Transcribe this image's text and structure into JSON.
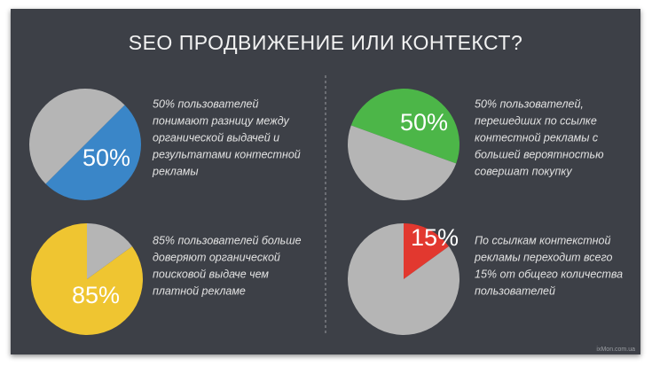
{
  "title": "SEO ПРОДВИЖЕНИЕ ИЛИ КОНТЕКСТ?",
  "source": "ixMon.com.ua",
  "chart_data": [
    {
      "type": "pie",
      "values": [
        50,
        50
      ],
      "colors": [
        "#3a86c8",
        "#b5b5b5"
      ],
      "value_labels": [
        "50%",
        null
      ],
      "description": [
        "50% пользователей",
        "понимают разницу между",
        "органической выдачей и",
        "результатами контестной",
        "рекламы"
      ]
    },
    {
      "type": "pie",
      "values": [
        50,
        50
      ],
      "colors": [
        "#4cb648",
        "#b5b5b5"
      ],
      "value_labels": [
        "50%",
        null
      ],
      "description": [
        "50% пользователей,",
        "перешедших по ссылке",
        "контестной рекламы с",
        "большей вероятностью",
        "совершат покупку"
      ]
    },
    {
      "type": "pie",
      "values": [
        85,
        15
      ],
      "colors": [
        "#efc531",
        "#b5b5b5"
      ],
      "value_labels": [
        "85%",
        null
      ],
      "description": [
        "85% пользователей больше",
        "доверяют органической",
        "поисковой выдаче чем",
        "платной рекламе"
      ]
    },
    {
      "type": "pie",
      "values": [
        15,
        85
      ],
      "colors": [
        "#e2382f",
        "#b5b5b5"
      ],
      "value_labels": [
        "15%",
        null
      ],
      "description": [
        "По ссылкам контекстной",
        "рекламы переходит всего",
        "15% от общего количества",
        "пользователей"
      ]
    }
  ]
}
